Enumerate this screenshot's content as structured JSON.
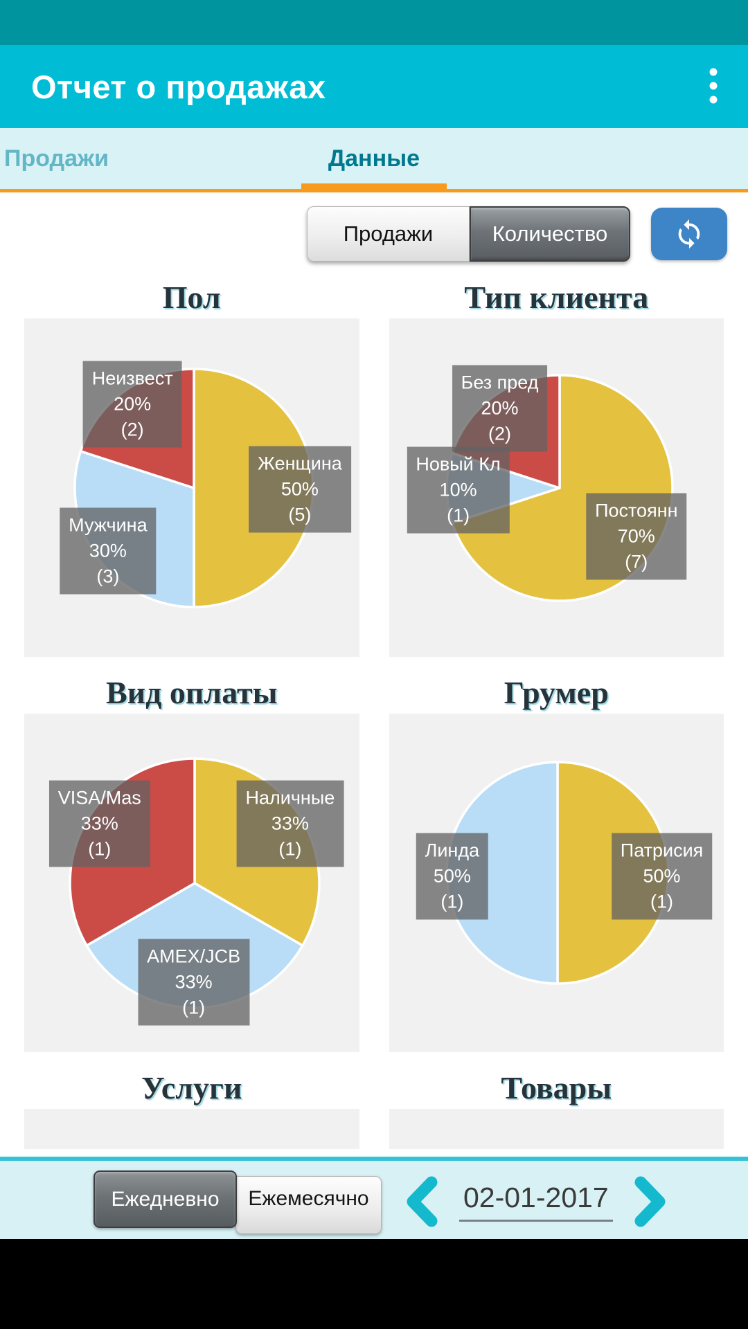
{
  "app": {
    "title": "Отчет о продажах",
    "colors": {
      "status_bar": "#00949f",
      "header": "#00bcd4",
      "tab_bg": "#d9f2f5",
      "accent_orange": "#f89b1c",
      "refresh_blue": "#3d85c6",
      "chevron_teal": "#14b9ce",
      "pie_yellow": "#e5c140",
      "pie_blue": "#b9ddf6",
      "pie_red": "#cb4b47",
      "label_bg": "rgba(98,98,98,0.76)"
    }
  },
  "tabs": [
    {
      "label": "Продажи",
      "active": false
    },
    {
      "label": "Данные",
      "active": true
    }
  ],
  "toolbar": {
    "metric_toggle": [
      {
        "label": "Продажи",
        "selected": false
      },
      {
        "label": "Количество",
        "selected": true
      }
    ],
    "refresh_icon": "refresh"
  },
  "chart_data": [
    {
      "type": "pie",
      "title": "Пол",
      "slices": [
        {
          "label": "Женщина",
          "percent": 50,
          "count": 5,
          "color": "#e5c140",
          "pos": [
            0.823,
            0.505
          ]
        },
        {
          "label": "Мужчина",
          "percent": 30,
          "count": 3,
          "color": "#b9ddf6",
          "pos": [
            0.25,
            0.687
          ]
        },
        {
          "label": "Неизвест",
          "percent": 20,
          "count": 2,
          "color": "#cb4b47",
          "pos": [
            0.323,
            0.254
          ]
        }
      ]
    },
    {
      "type": "pie",
      "title": "Тип клиента",
      "slices": [
        {
          "label": "Постоянн",
          "percent": 70,
          "count": 7,
          "color": "#e5c140",
          "pos": [
            0.739,
            0.645
          ]
        },
        {
          "label": "Новый Кл",
          "percent": 10,
          "count": 1,
          "color": "#b9ddf6",
          "pos": [
            0.207,
            0.507
          ]
        },
        {
          "label": "Без пред",
          "percent": 20,
          "count": 2,
          "color": "#cb4b47",
          "pos": [
            0.331,
            0.265
          ]
        }
      ]
    },
    {
      "type": "pie",
      "title": "Вид оплаты",
      "slices": [
        {
          "label": "Наличные",
          "percent": 33,
          "count": 1,
          "color": "#e5c140",
          "pos": [
            0.794,
            0.325
          ]
        },
        {
          "label": "AMEX/JCB",
          "percent": 33,
          "count": 1,
          "color": "#b9ddf6",
          "pos": [
            0.506,
            0.794
          ]
        },
        {
          "label": "VISA/Mas",
          "percent": 33,
          "count": 1,
          "color": "#cb4b47",
          "pos": [
            0.225,
            0.325
          ]
        }
      ]
    },
    {
      "type": "pie",
      "title": "Грумер",
      "slices": [
        {
          "label": "Патрисия",
          "percent": 50,
          "count": 1,
          "color": "#e5c140",
          "pos": [
            0.815,
            0.48
          ]
        },
        {
          "label": "Линда",
          "percent": 50,
          "count": 1,
          "color": "#b9ddf6",
          "pos": [
            0.189,
            0.48
          ]
        }
      ]
    },
    {
      "type": "pie",
      "title": "Услуги",
      "slices": []
    },
    {
      "type": "pie",
      "title": "Товары",
      "slices": []
    }
  ],
  "footer": {
    "period_toggle": [
      {
        "label": "Ежедневно",
        "selected": true
      },
      {
        "label": "Ежемесячно",
        "selected": false
      }
    ],
    "date": "02-01-2017",
    "prev_icon": "chevron-left",
    "next_icon": "chevron-right"
  }
}
